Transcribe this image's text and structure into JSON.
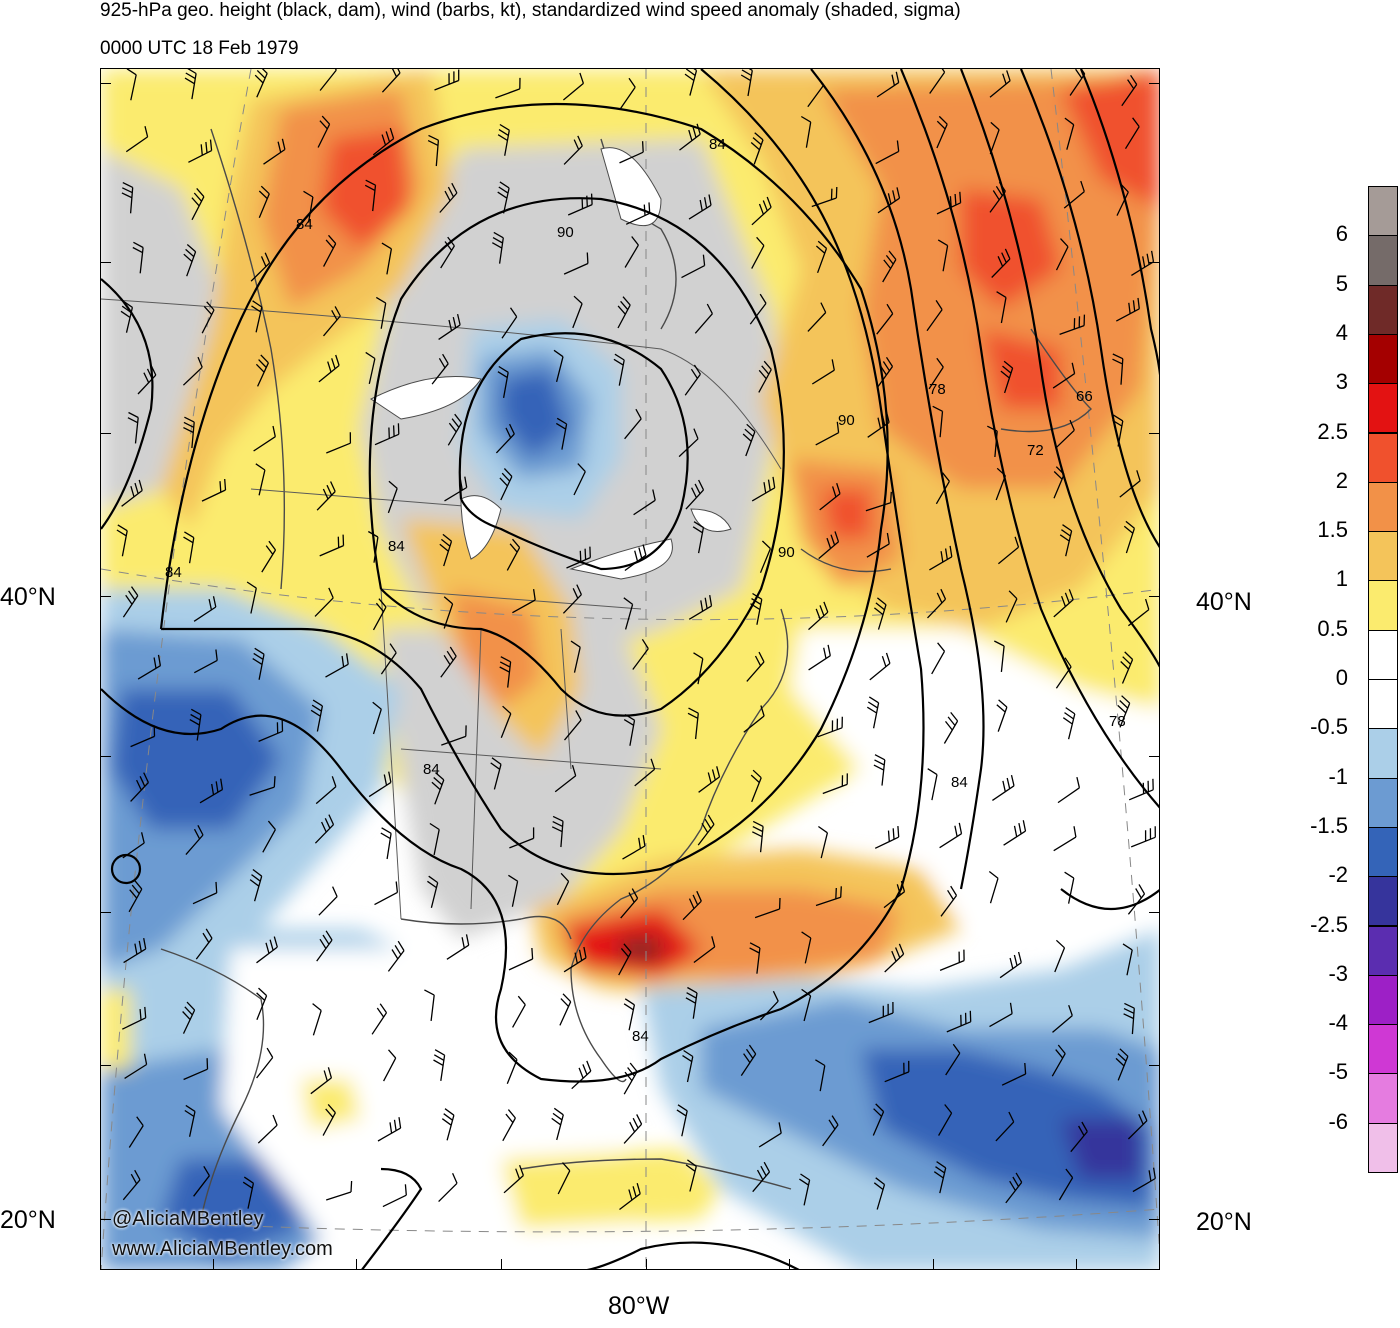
{
  "title": {
    "line1": "925-hPa geo. height (black, dam), wind (barbs, kt), standardized wind speed anomaly (shaded, sigma)",
    "line2": "0000 UTC 18 Feb 1979"
  },
  "axes": {
    "lat_labels": [
      "40°N",
      "20°N"
    ],
    "lon_labels": [
      "80°W"
    ]
  },
  "credits": {
    "twitter": "@AliciaMBentley",
    "website": "www.AliciaMBentley.com"
  },
  "contour_labels": [
    "84",
    "90",
    "84",
    "84",
    "90",
    "84",
    "90",
    "84",
    "84",
    "84",
    "78",
    "72",
    "66",
    "78"
  ],
  "colorbar": {
    "labels": [
      "6",
      "5",
      "4",
      "3",
      "2.5",
      "2",
      "1.5",
      "1",
      "0.5",
      "0",
      "-0.5",
      "-1",
      "-1.5",
      "-2",
      "-2.5",
      "-3",
      "-4",
      "-5",
      "-6"
    ],
    "colors": [
      "#a59b97",
      "#756b69",
      "#6f2a28",
      "#a40000",
      "#e31212",
      "#f0512d",
      "#f29148",
      "#f4c45a",
      "#fbeb6e",
      "#ffffff",
      "#ffffff",
      "#abcfe8",
      "#6c9bd2",
      "#3464b8",
      "#36349c",
      "#5b2db0",
      "#9d20c6",
      "#cf38d4",
      "#e57ce0",
      "#f0bfe9"
    ]
  }
}
